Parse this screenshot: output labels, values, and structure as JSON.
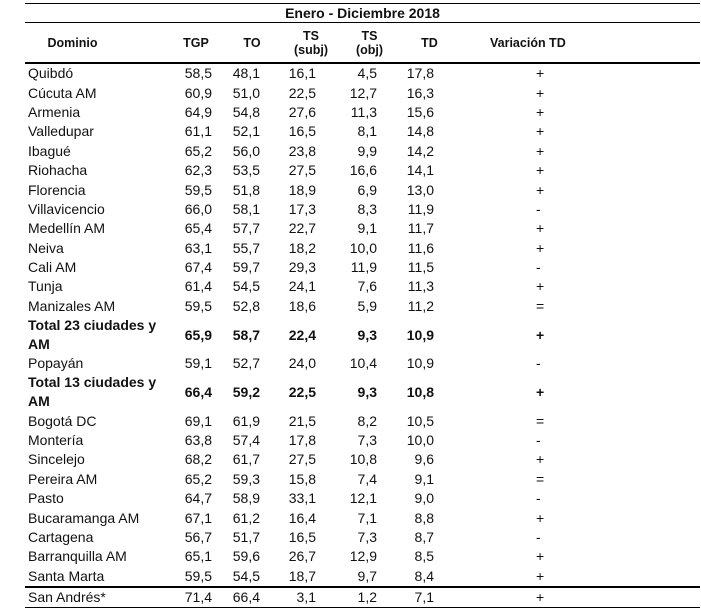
{
  "title": "Enero - Diciembre 2018",
  "headers": [
    "Dominio",
    "TGP",
    "TO",
    "TS (subj)",
    "TS (obj)",
    "TD",
    "Variación TD"
  ],
  "rows": [
    {
      "d": "Quibdó",
      "v": [
        "58,5",
        "48,1",
        "16,1",
        "4,5",
        "17,8",
        "+"
      ]
    },
    {
      "d": "Cúcuta AM",
      "v": [
        "60,9",
        "51,0",
        "22,5",
        "12,7",
        "16,3",
        "+"
      ]
    },
    {
      "d": "Armenia",
      "v": [
        "64,9",
        "54,8",
        "27,6",
        "11,3",
        "15,6",
        "+"
      ]
    },
    {
      "d": "Valledupar",
      "v": [
        "61,1",
        "52,1",
        "16,5",
        "8,1",
        "14,8",
        "+"
      ]
    },
    {
      "d": "Ibagué",
      "v": [
        "65,2",
        "56,0",
        "23,8",
        "9,9",
        "14,2",
        "+"
      ]
    },
    {
      "d": "Riohacha",
      "v": [
        "62,3",
        "53,5",
        "27,5",
        "16,6",
        "14,1",
        "+"
      ]
    },
    {
      "d": "Florencia",
      "v": [
        "59,5",
        "51,8",
        "18,9",
        "6,9",
        "13,0",
        "+"
      ]
    },
    {
      "d": "Villavicencio",
      "v": [
        "66,0",
        "58,1",
        "17,3",
        "8,3",
        "11,9",
        "-"
      ]
    },
    {
      "d": "Medellín AM",
      "v": [
        "65,4",
        "57,7",
        "22,7",
        "9,1",
        "11,7",
        "+"
      ]
    },
    {
      "d": "Neiva",
      "v": [
        "63,1",
        "55,7",
        "18,2",
        "10,0",
        "11,6",
        "+"
      ]
    },
    {
      "d": "Cali AM",
      "v": [
        "67,4",
        "59,7",
        "29,3",
        "11,9",
        "11,5",
        "-"
      ]
    },
    {
      "d": "Tunja",
      "v": [
        "61,4",
        "54,5",
        "24,1",
        "7,6",
        "11,3",
        "+"
      ]
    },
    {
      "d": "Manizales AM",
      "v": [
        "59,5",
        "52,8",
        "18,6",
        "5,9",
        "11,2",
        "="
      ]
    },
    {
      "d": "Total 23 ciudades y AM",
      "v": [
        "65,9",
        "58,7",
        "22,4",
        "9,3",
        "10,9",
        "+"
      ],
      "bold": true
    },
    {
      "d": "Popayán",
      "v": [
        "59,1",
        "52,7",
        "24,0",
        "10,4",
        "10,9",
        "-"
      ]
    },
    {
      "d": "Total 13 ciudades y AM",
      "v": [
        "66,4",
        "59,2",
        "22,5",
        "9,3",
        "10,8",
        "+"
      ],
      "bold": true
    },
    {
      "d": "Bogotá DC",
      "v": [
        "69,1",
        "61,9",
        "21,5",
        "8,2",
        "10,5",
        "="
      ]
    },
    {
      "d": "Montería",
      "v": [
        "63,8",
        "57,4",
        "17,8",
        "7,3",
        "10,0",
        "-"
      ]
    },
    {
      "d": "Sincelejo",
      "v": [
        "68,2",
        "61,7",
        "27,5",
        "10,8",
        "9,6",
        "+"
      ]
    },
    {
      "d": "Pereira AM",
      "v": [
        "65,2",
        "59,3",
        "15,8",
        "7,4",
        "9,1",
        "="
      ]
    },
    {
      "d": "Pasto",
      "v": [
        "64,7",
        "58,9",
        "33,1",
        "12,1",
        "9,0",
        "-"
      ]
    },
    {
      "d": "Bucaramanga AM",
      "v": [
        "67,1",
        "61,2",
        "16,4",
        "7,1",
        "8,8",
        "+"
      ]
    },
    {
      "d": "Cartagena",
      "v": [
        "56,7",
        "51,7",
        "16,5",
        "7,3",
        "8,7",
        "-"
      ]
    },
    {
      "d": "Barranquilla AM",
      "v": [
        "65,1",
        "59,6",
        "26,7",
        "12,9",
        "8,5",
        "+"
      ]
    },
    {
      "d": "Santa Marta",
      "v": [
        "59,5",
        "54,5",
        "18,7",
        "9,7",
        "8,4",
        "+"
      ]
    },
    {
      "d": "San Andrés*",
      "v": [
        "71,4",
        "66,4",
        "3,1",
        "1,2",
        "7,1",
        "+"
      ],
      "last": true
    }
  ]
}
